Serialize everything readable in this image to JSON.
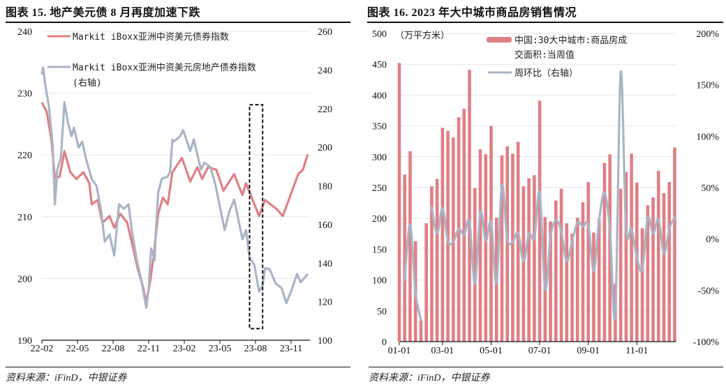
{
  "chart_data": [
    {
      "type": "line",
      "title": "图表 15. 地产美元债 8 月再度加速下跌",
      "source": "资料来源：iFinD，中银证券",
      "x_unit": "months since 2022-02",
      "x_ticks": [
        "22-02",
        "22-05",
        "22-08",
        "22-11",
        "23-02",
        "23-05",
        "23-08",
        "23-11"
      ],
      "x_tick_values": [
        0,
        3,
        6,
        9,
        12,
        15,
        18,
        21
      ],
      "xlim": [
        0,
        22.6
      ],
      "y_left": {
        "ylim": [
          190,
          240
        ],
        "ticks": [
          "240",
          "230",
          "220",
          "210",
          "200",
          "190"
        ],
        "tick_values": [
          240,
          230,
          220,
          210,
          200,
          190
        ]
      },
      "y_right": {
        "ylim": [
          100,
          260
        ],
        "ticks": [
          "260",
          "240",
          "220",
          "200",
          "180",
          "160",
          "140",
          "120",
          "100"
        ],
        "tick_values": [
          260,
          240,
          220,
          200,
          180,
          160,
          140,
          120,
          100
        ]
      },
      "grid": true,
      "legend_position": "top-left",
      "highlight": {
        "x_start": 17.5,
        "x_end": 18.6,
        "y_right_top": 222,
        "y_right_bottom": 106
      },
      "series": [
        {
          "name": "Markit iBoxx亚洲中资美元债券指数",
          "axis": "left",
          "color": "#e07f85",
          "x": [
            0,
            0.4,
            0.8,
            1.1,
            1.5,
            1.9,
            2.4,
            2.9,
            3.5,
            4.0,
            4.2,
            4.7,
            5.1,
            5.7,
            6.1,
            6.6,
            7.2,
            7.7,
            8.1,
            8.5,
            8.8,
            9.1,
            9.4,
            9.8,
            10.2,
            10.6,
            11.0,
            11.8,
            12.5,
            13.1,
            13.5,
            14.0,
            14.7,
            15.3,
            16.2,
            16.9,
            17.2,
            17.6,
            18.3,
            18.8,
            19.8,
            20.3,
            20.8,
            21.6,
            22.0,
            22.4
          ],
          "y": [
            228.5,
            227.0,
            222.5,
            216.1,
            216.5,
            220.6,
            217.2,
            216.1,
            217.2,
            215.4,
            212.0,
            212.7,
            209.0,
            210.1,
            208.2,
            210.5,
            209.0,
            204.8,
            201.4,
            198.8,
            196.2,
            199.2,
            203.3,
            210.5,
            213.1,
            212.0,
            217.2,
            219.5,
            215.7,
            218.0,
            216.1,
            218.0,
            217.6,
            214.2,
            216.9,
            213.5,
            215.4,
            213.5,
            210.1,
            212.7,
            211.2,
            210.1,
            212.7,
            216.9,
            217.6,
            220.1
          ]
        },
        {
          "name": "Markit iBoxx亚洲中资美元房地产债券指数",
          "name_line2": "(右轴)",
          "axis": "right",
          "color": "#aab4c6",
          "x": [
            0,
            0.1,
            0.3,
            0.6,
            0.9,
            1.1,
            1.3,
            1.6,
            1.9,
            2.2,
            2.5,
            2.7,
            3.1,
            3.4,
            3.7,
            4.2,
            4.6,
            5.0,
            5.3,
            5.7,
            6.1,
            6.5,
            6.9,
            7.3,
            7.6,
            8.0,
            8.4,
            8.8,
            9.0,
            9.2,
            9.5,
            9.6,
            9.8,
            10.1,
            10.6,
            10.8,
            11.0,
            11.1,
            11.6,
            11.9,
            12.5,
            12.8,
            13.4,
            13.7,
            14.2,
            14.6,
            15.0,
            15.4,
            15.8,
            16.2,
            16.5,
            16.9,
            17.2,
            17.5,
            17.9,
            18.3,
            18.6,
            18.8,
            19.2,
            19.7,
            20.2,
            20.6,
            21.0,
            21.5,
            21.8,
            22.4
          ],
          "y": [
            237.7,
            241.3,
            231.7,
            220.9,
            201.6,
            170.4,
            188.4,
            194.4,
            223.3,
            212.5,
            205.8,
            210.1,
            199.8,
            202.9,
            194.4,
            183.6,
            180.0,
            166.8,
            151.1,
            154.7,
            143.9,
            170.4,
            168.0,
            170.4,
            156.0,
            141.5,
            130.6,
            116.8,
            127.0,
            147.5,
            141.5,
            156.0,
            176.4,
            183.6,
            184.8,
            187.2,
            204.0,
            202.9,
            205.3,
            208.8,
            198.0,
            204.0,
            188.4,
            192.0,
            189.6,
            181.2,
            169.2,
            157.1,
            166.8,
            172.8,
            164.3,
            152.3,
            157.1,
            142.7,
            139.1,
            125.3,
            128.2,
            137.3,
            136.7,
            129.4,
            127.0,
            119.2,
            125.3,
            134.3,
            130.0,
            134.3
          ]
        }
      ]
    },
    {
      "type": "bar",
      "title": "图表 16. 2023 年大中城市商品房销售情况",
      "source": "资料来源：iFinD，中银证券",
      "unit_label": "（万平方米）",
      "x_ticks": [
        "01-01",
        "03-01",
        "05-01",
        "07-01",
        "09-01",
        "11-01"
      ],
      "x_tick_index": [
        0,
        8,
        17,
        26,
        35,
        44
      ],
      "y_left": {
        "ylim": [
          0,
          500
        ],
        "ticks": [
          "500",
          "450",
          "400",
          "350",
          "300",
          "250",
          "200",
          "150",
          "100",
          "50",
          "0"
        ],
        "tick_values": [
          500,
          450,
          400,
          350,
          300,
          250,
          200,
          150,
          100,
          50,
          0
        ]
      },
      "y_right": {
        "ylim": [
          -100,
          200
        ],
        "ticks": [
          "200%",
          "150%",
          "100%",
          "50%",
          "0%",
          "-50%",
          "-100%"
        ],
        "tick_values": [
          200,
          150,
          100,
          50,
          0,
          -50,
          -100
        ]
      },
      "grid": true,
      "legend_position": "top-center",
      "series": [
        {
          "name": "中国:30大中城市:商品房成",
          "name_line2": "交面积:当周值",
          "type": "bar",
          "axis": "left",
          "color": "#e07f85",
          "values": [
            452,
            271,
            309,
            163,
            34,
            192,
            252,
            264,
            347,
            342,
            331,
            364,
            378,
            441,
            249,
            312,
            304,
            350,
            201,
            302,
            317,
            305,
            324,
            252,
            265,
            270,
            391,
            202,
            195,
            229,
            248,
            192,
            175,
            201,
            226,
            259,
            177,
            199,
            290,
            304,
            94,
            248,
            275,
            305,
            258,
            184,
            221,
            234,
            277,
            241,
            259,
            315
          ]
        },
        {
          "name": "周环比（右轴）",
          "type": "line",
          "axis": "right",
          "color": "#aab4c6",
          "values": [
            null,
            -40,
            14,
            -52,
            -79,
            null,
            31,
            5,
            30,
            -2,
            -3,
            10,
            4,
            17,
            -44,
            26,
            -2,
            16,
            -43,
            52,
            0,
            -3,
            6,
            -22,
            5,
            1,
            45,
            -49,
            2,
            18,
            7,
            -22,
            -2,
            16,
            12,
            14,
            -31,
            18,
            45,
            9,
            -74,
            162,
            10,
            10,
            -18,
            -30,
            21,
            5,
            19,
            -14,
            10,
            21
          ]
        }
      ]
    }
  ]
}
